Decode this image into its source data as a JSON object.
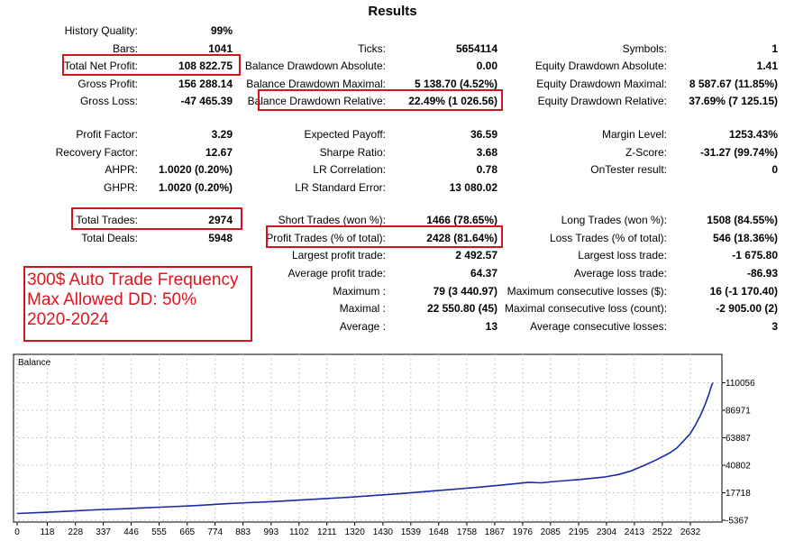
{
  "title": "Results",
  "stats": {
    "history_quality": {
      "label": "History Quality:",
      "value": "99%"
    },
    "bars": {
      "label": "Bars:",
      "value": "1041"
    },
    "total_net_profit": {
      "label": "Total Net Profit:",
      "value": "108 822.75"
    },
    "gross_profit": {
      "label": "Gross Profit:",
      "value": "156 288.14"
    },
    "gross_loss": {
      "label": "Gross Loss:",
      "value": "-47 465.39"
    },
    "profit_factor": {
      "label": "Profit Factor:",
      "value": "3.29"
    },
    "recovery_factor": {
      "label": "Recovery Factor:",
      "value": "12.67"
    },
    "ahpr": {
      "label": "AHPR:",
      "value": "1.0020 (0.20%)"
    },
    "ghpr": {
      "label": "GHPR:",
      "value": "1.0020 (0.20%)"
    },
    "total_trades": {
      "label": "Total Trades:",
      "value": "2974"
    },
    "total_deals": {
      "label": "Total Deals:",
      "value": "5948"
    },
    "ticks": {
      "label": "Ticks:",
      "value": "5654114"
    },
    "balance_dd_abs": {
      "label": "Balance Drawdown Absolute:",
      "value": "0.00"
    },
    "balance_dd_max": {
      "label": "Balance Drawdown Maximal:",
      "value": "5 138.70 (4.52%)"
    },
    "balance_dd_rel": {
      "label": "Balance Drawdown Relative:",
      "value": "22.49% (1 026.56)"
    },
    "expected_payoff": {
      "label": "Expected Payoff:",
      "value": "36.59"
    },
    "sharpe_ratio": {
      "label": "Sharpe Ratio:",
      "value": "3.68"
    },
    "lr_correlation": {
      "label": "LR Correlation:",
      "value": "0.78"
    },
    "lr_std_error": {
      "label": "LR Standard Error:",
      "value": "13 080.02"
    },
    "short_trades": {
      "label": "Short Trades (won %):",
      "value": "1466 (78.65%)"
    },
    "profit_trades": {
      "label": "Profit Trades (% of total):",
      "value": "2428 (81.64%)"
    },
    "largest_profit": {
      "label": "Largest profit trade:",
      "value": "2 492.57"
    },
    "average_profit": {
      "label": "Average profit trade:",
      "value": "64.37"
    },
    "maximum": {
      "label": "Maximum :",
      "value": "79 (3 440.97)"
    },
    "maximal": {
      "label": "Maximal :",
      "value": "22 550.80 (45)"
    },
    "average": {
      "label": "Average :",
      "value": "13"
    },
    "symbols": {
      "label": "Symbols:",
      "value": "1"
    },
    "equity_dd_abs": {
      "label": "Equity Drawdown Absolute:",
      "value": "1.41"
    },
    "equity_dd_max": {
      "label": "Equity Drawdown Maximal:",
      "value": "8 587.67 (11.85%)"
    },
    "equity_dd_rel": {
      "label": "Equity Drawdown Relative:",
      "value": "37.69% (7 125.15)"
    },
    "margin_level": {
      "label": "Margin Level:",
      "value": "1253.43%"
    },
    "z_score": {
      "label": "Z-Score:",
      "value": "-31.27 (99.74%)"
    },
    "ontester": {
      "label": "OnTester result:",
      "value": "0"
    },
    "long_trades": {
      "label": "Long Trades (won %):",
      "value": "1508 (84.55%)"
    },
    "loss_trades": {
      "label": "Loss Trades (% of total):",
      "value": "546 (18.36%)"
    },
    "largest_loss": {
      "label": "Largest loss trade:",
      "value": "-1 675.80"
    },
    "average_loss": {
      "label": "Average loss trade:",
      "value": "-86.93"
    },
    "max_consec_losses": {
      "label": "Maximum consecutive losses ($):",
      "value": "16 (-1 170.40)"
    },
    "maximal_consec_loss": {
      "label": "Maximal consecutive loss (count):",
      "value": "-2 905.00 (2)"
    },
    "avg_consec_losses": {
      "label": "Average consecutive losses:",
      "value": "3"
    }
  },
  "note": {
    "line1": "300$ Auto Trade Frequency",
    "line2": "Max Allowed DD: 50%",
    "line3": "2020-2024",
    "color": "#e0141c"
  },
  "highlight_color": "#d0161c",
  "chart_data": {
    "type": "line",
    "title": "Balance",
    "series": [
      {
        "color": "#1a2ba8",
        "x": [
          0,
          100,
          200,
          300,
          400,
          500,
          600,
          700,
          800,
          900,
          1000,
          1100,
          1200,
          1300,
          1400,
          1500,
          1600,
          1700,
          1800,
          1900,
          2000,
          2050,
          2100,
          2200,
          2300,
          2350,
          2400,
          2450,
          2500,
          2550,
          2580,
          2600,
          2630,
          2650,
          2670,
          2690,
          2705,
          2715,
          2720
        ],
        "y": [
          300,
          1200,
          2300,
          3300,
          4200,
          5100,
          6000,
          7000,
          8300,
          9400,
          10300,
          11500,
          12700,
          14000,
          15500,
          17000,
          18800,
          20500,
          22300,
          24300,
          26500,
          26000,
          27200,
          28800,
          31000,
          33000,
          36000,
          40500,
          45500,
          51000,
          55500,
          60000,
          67000,
          74000,
          82000,
          92000,
          101000,
          108000,
          110056
        ]
      }
    ],
    "xlim": [
      0,
      2741
    ],
    "ylim": [
      -5367,
      121000
    ],
    "x_ticks": [
      "0",
      "118",
      "228",
      "337",
      "446",
      "555",
      "665",
      "774",
      "883",
      "993",
      "1102",
      "1211",
      "1320",
      "1430",
      "1539",
      "1648",
      "1758",
      "1867",
      "1976",
      "2085",
      "2195",
      "2304",
      "2413",
      "2522",
      "2632"
    ],
    "y_ticks": [
      "110056",
      "86971",
      "63887",
      "40802",
      "17718",
      "-5367"
    ],
    "grid": true
  }
}
